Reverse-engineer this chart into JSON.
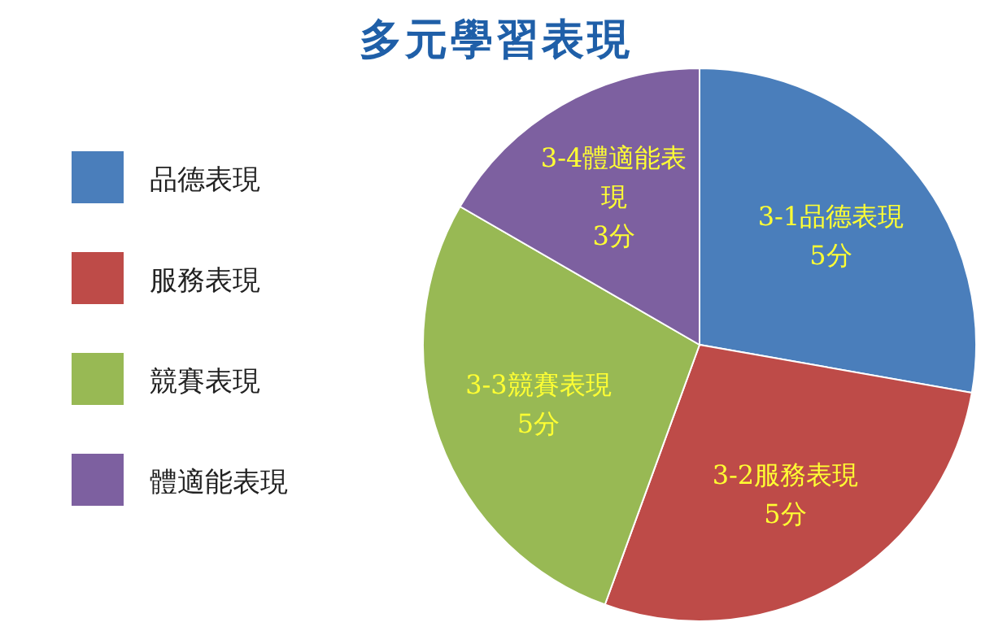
{
  "chart_data": {
    "type": "pie",
    "title": "多元學習表現",
    "categories": [
      "品德表現",
      "服務表現",
      "競賽表現",
      "體適能表現"
    ],
    "values": [
      5,
      5,
      5,
      3
    ],
    "colors": [
      "#4a7ebb",
      "#be4b48",
      "#98b954",
      "#7d60a0"
    ],
    "value_labels": [
      "3-1品德表現 5分",
      "3-2服務表現 5分",
      "3-3競賽表現 5分",
      "3-4體適能表現 3分"
    ],
    "legend": "left"
  }
}
